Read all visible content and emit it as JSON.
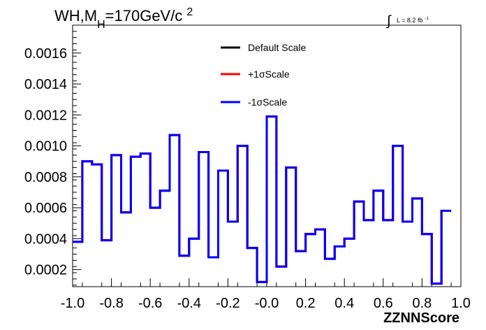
{
  "chart_data": {
    "type": "line",
    "title": {
      "prefix": "WH,M",
      "subscript": "H",
      "suffix": "=170GeV/c",
      "superscript": "2"
    },
    "luminosity": {
      "symbol": "∫",
      "text": "L = 8.2 fb",
      "superscript": "-1"
    },
    "xlabel": "ZZNNScore",
    "ylabel": "",
    "xlim": [
      -1.0,
      1.0
    ],
    "ylim": [
      9e-05,
      0.00178
    ],
    "x_ticks": [
      "-1.0",
      "-0.8",
      "-0.6",
      "-0.4",
      "-0.2",
      "-0.0",
      "0.2",
      "0.4",
      "0.6",
      "0.8",
      "1.0"
    ],
    "x_tick_values": [
      -1.0,
      -0.8,
      -0.6,
      -0.4,
      -0.2,
      0.0,
      0.2,
      0.4,
      0.6,
      0.8,
      1.0
    ],
    "y_ticks": [
      "0.0002",
      "0.0004",
      "0.0006",
      "0.0008",
      "0.0010",
      "0.0012",
      "0.0014",
      "0.0016"
    ],
    "y_tick_values": [
      0.0002,
      0.0004,
      0.0006,
      0.0008,
      0.001,
      0.0012,
      0.0014,
      0.0016
    ],
    "legend_position": "top-center",
    "grid": false,
    "bin_edges": [
      -1.0,
      -0.95,
      -0.9,
      -0.85,
      -0.8,
      -0.75,
      -0.7,
      -0.65,
      -0.6,
      -0.55,
      -0.5,
      -0.45,
      -0.4,
      -0.35,
      -0.3,
      -0.25,
      -0.2,
      -0.15,
      -0.1,
      -0.05,
      0.0,
      0.05,
      0.1,
      0.15,
      0.2,
      0.25,
      0.3,
      0.35,
      0.4,
      0.45,
      0.5,
      0.55,
      0.6,
      0.65,
      0.7,
      0.75,
      0.8,
      0.85,
      0.9,
      0.95,
      1.0
    ],
    "series": [
      {
        "name": "Default Scale",
        "color": "#000000",
        "values": [
          0.00038,
          0.0009,
          0.00088,
          0.00039,
          0.00094,
          0.00057,
          0.00093,
          0.00095,
          0.0006,
          0.00071,
          0.00107,
          0.00029,
          0.0004,
          0.00096,
          0.00028,
          0.00084,
          0.00051,
          0.001,
          0.00034,
          0.00012,
          0.00119,
          0.00022,
          0.00086,
          0.00032,
          0.00043,
          0.00046,
          0.00027,
          0.00035,
          0.0004,
          0.00064,
          0.00052,
          0.00071,
          0.00052,
          0.001,
          0.00051,
          0.00066,
          0.00043,
          0.00011,
          0.00058
        ]
      },
      {
        "name": "+1σScale",
        "color": "#ff0000",
        "values": [
          0.00038,
          0.0009,
          0.00088,
          0.00039,
          0.00094,
          0.00057,
          0.00093,
          0.00095,
          0.0006,
          0.00071,
          0.00107,
          0.00029,
          0.0004,
          0.00096,
          0.00028,
          0.00084,
          0.00051,
          0.001,
          0.00034,
          0.00012,
          0.00119,
          0.00022,
          0.00086,
          0.00032,
          0.00043,
          0.00046,
          0.00027,
          0.00035,
          0.0004,
          0.00064,
          0.00052,
          0.00071,
          0.00052,
          0.001,
          0.00051,
          0.00066,
          0.00043,
          0.00011,
          0.00058
        ]
      },
      {
        "name": "-1σScale",
        "color": "#0000ff",
        "values": [
          0.00038,
          0.0009,
          0.00088,
          0.00039,
          0.00094,
          0.00057,
          0.00093,
          0.00095,
          0.0006,
          0.00071,
          0.00107,
          0.00029,
          0.0004,
          0.00096,
          0.00028,
          0.00084,
          0.00051,
          0.001,
          0.00034,
          0.00012,
          0.00119,
          0.00022,
          0.00086,
          0.00032,
          0.00043,
          0.00046,
          0.00027,
          0.00035,
          0.0004,
          0.00064,
          0.00052,
          0.00071,
          0.00052,
          0.001,
          0.00051,
          0.00066,
          0.00043,
          0.00011,
          0.00058
        ]
      }
    ]
  }
}
